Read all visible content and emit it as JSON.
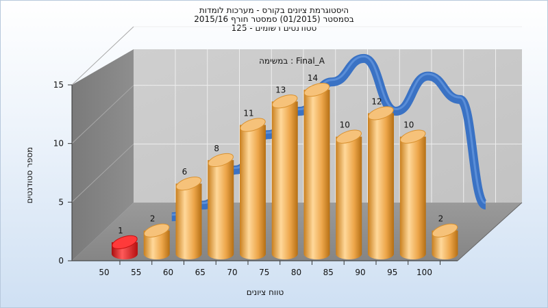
{
  "chart_data": {
    "type": "bar",
    "title_lines": [
      "היסטוגרמת ציונים בקורס - מערכות לומדות",
      "בסמסטר  (01/2015)  סמסטר חורף 2015/16",
      "סטודנטים רשומים - 125"
    ],
    "xlabel": "טווח ציונים",
    "ylabel": "מספר סטודנטים",
    "inner_label": "במשימה : Final_A",
    "categories": [
      "50",
      "55",
      "60",
      "65",
      "70",
      "75",
      "80",
      "85",
      "90",
      "95",
      "100"
    ],
    "bars": [
      {
        "x": 50,
        "value": 1,
        "label": "1",
        "color": "#d81818"
      },
      {
        "x": 55,
        "value": 2,
        "label": "2",
        "color": "#e8a23a"
      },
      {
        "x": 60,
        "value": 6,
        "label": "6",
        "color": "#e8a23a"
      },
      {
        "x": 65,
        "value": 8,
        "label": "8",
        "color": "#e8a23a"
      },
      {
        "x": 70,
        "value": 11,
        "label": "11",
        "color": "#e8a23a"
      },
      {
        "x": 75,
        "value": 13,
        "label": "13",
        "color": "#e8a23a"
      },
      {
        "x": 80,
        "value": 14,
        "label": "14",
        "color": "#e8a23a"
      },
      {
        "x": 85,
        "value": 10,
        "label": "10",
        "color": "#e8a23a"
      },
      {
        "x": 90,
        "value": 12,
        "label": "12",
        "color": "#e8a23a"
      },
      {
        "x": 95,
        "value": 10,
        "label": "10",
        "color": "#e8a23a"
      },
      {
        "x": 100,
        "value": 2,
        "label": "2",
        "color": "#e8a23a"
      }
    ],
    "curve": {
      "color": "#3a72c4",
      "points": [
        [
          55,
          2
        ],
        [
          60,
          3
        ],
        [
          65,
          6
        ],
        [
          70,
          9
        ],
        [
          75,
          11
        ],
        [
          80,
          13.5
        ],
        [
          85,
          15.5
        ],
        [
          90,
          11
        ],
        [
          95,
          14
        ],
        [
          100,
          12
        ],
        [
          104,
          3
        ]
      ]
    },
    "yticks": [
      0,
      5,
      10,
      15
    ],
    "ylim": [
      0,
      15
    ],
    "grid": true
  }
}
